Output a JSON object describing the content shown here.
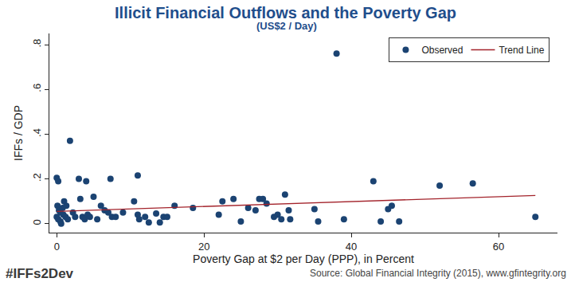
{
  "chart_data": {
    "type": "scatter",
    "title": "Illicit Financial Outflows and the Poverty Gap",
    "subtitle": "(US$2 / Day)",
    "x_label": "Poverty Gap at $2 per Day (PPP), in Percent",
    "y_label": "IFFs / GDP",
    "footer_left": "#IFFs2Dev",
    "source": "Source: Global Financial Integrity (2015), www.gfintegrity.org",
    "xlim": [
      -1,
      68
    ],
    "ylim": [
      -0.04,
      0.85
    ],
    "xticks": [
      0,
      20,
      40,
      60
    ],
    "yticks": [
      0,
      {
        "value": 0.2,
        "label": ".2"
      },
      {
        "value": 0.4,
        "label": ".4"
      },
      {
        "value": 0.6,
        "label": ".6"
      },
      {
        "value": 0.8,
        "label": ".8"
      }
    ],
    "grid": false,
    "legend": "upper right",
    "series": [
      {
        "name": "Observed",
        "type": "scatter",
        "marker": "circle",
        "color": "#1b4372",
        "x": [
          0,
          0.2,
          0.1,
          0.3,
          0.5,
          0,
          0.2,
          0.5,
          0.8,
          1,
          0.9,
          1.2,
          1.5,
          0.6,
          1.8,
          1.3,
          2.2,
          2.5,
          3,
          3.2,
          3.5,
          3.8,
          4,
          4.2,
          4.5,
          5,
          5.5,
          6,
          6.5,
          7,
          7.3,
          7.5,
          8,
          9,
          10.5,
          11,
          11,
          11.2,
          12,
          12.5,
          13.5,
          14,
          14.5,
          15,
          16,
          18.5,
          22,
          22.5,
          24,
          25,
          26,
          27,
          27.5,
          28,
          28.5,
          29.5,
          30,
          30.5,
          31,
          31.5,
          31.7,
          35,
          35.5,
          38,
          39,
          43,
          44,
          45,
          45.5,
          46.5,
          52,
          56.5,
          65
        ],
        "values": [
          0.205,
          0.19,
          0.08,
          0.06,
          0.05,
          0.03,
          0.02,
          0.01,
          0.07,
          0.1,
          0.04,
          0.03,
          0.02,
          0.0,
          0.37,
          0.08,
          0.05,
          0.03,
          0.2,
          0.11,
          0.03,
          0.02,
          0.19,
          0.04,
          0.03,
          0.12,
          0.02,
          0.08,
          0.06,
          0.05,
          0.2,
          0.03,
          0.03,
          0.05,
          0.1,
          0.215,
          0.04,
          0.02,
          0.03,
          0.005,
          0.045,
          0.005,
          0.03,
          0.03,
          0.08,
          0.07,
          0.04,
          0.1,
          0.11,
          0.01,
          0.07,
          0.06,
          0.11,
          0.11,
          0.09,
          0.03,
          0.04,
          0.02,
          0.13,
          0.06,
          0.02,
          0.065,
          0.01,
          0.76,
          0.02,
          0.19,
          0.01,
          0.065,
          0.08,
          0.01,
          0.17,
          0.18,
          0.03
        ]
      },
      {
        "name": "Trend Line",
        "type": "line",
        "line_style": "solid",
        "color": "#a3232b",
        "x": [
          0,
          65
        ],
        "values": [
          0.055,
          0.126
        ]
      }
    ]
  }
}
